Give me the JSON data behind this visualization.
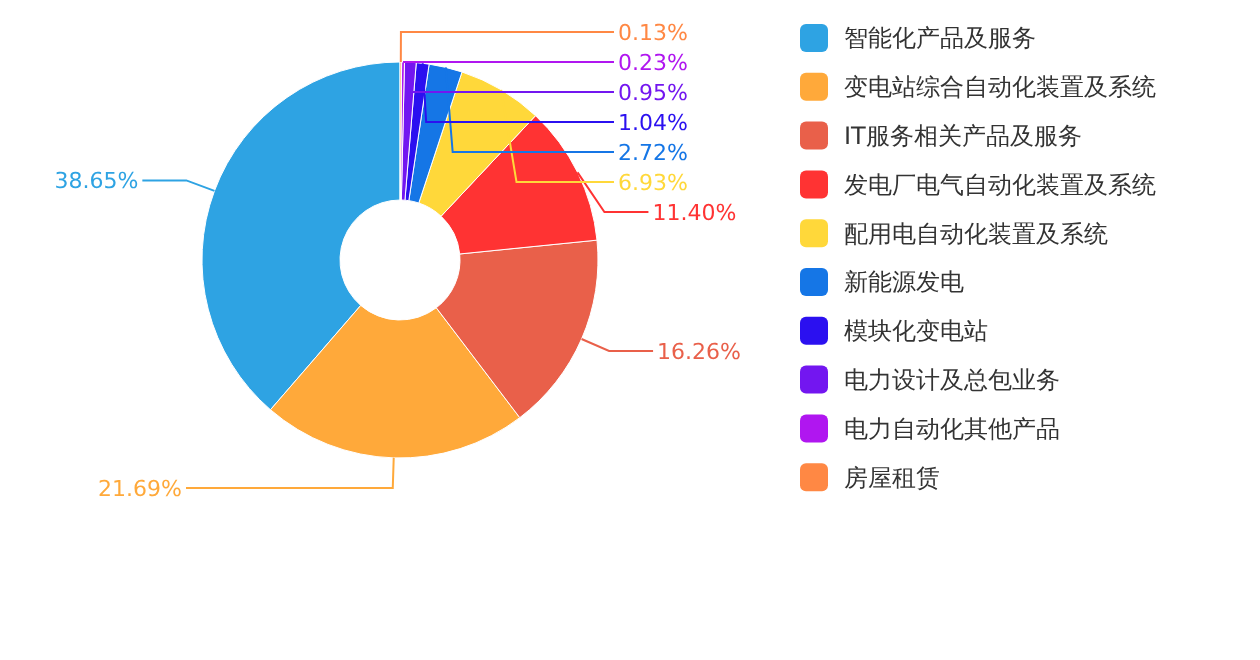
{
  "chart_data": {
    "type": "donut",
    "legend": "right",
    "categories": [
      "智能化产品及服务",
      "变电站综合自动化装置及系统",
      "IT服务相关产品及服务",
      "发电厂电气自动化装置及系统",
      "配用电自动化装置及系统",
      "新能源发电",
      "模块化变电站",
      "电力设计及总包业务",
      "电力自动化其他产品",
      "房屋租赁"
    ],
    "values": [
      38.65,
      21.69,
      16.26,
      11.4,
      6.93,
      2.72,
      1.04,
      0.95,
      0.23,
      0.13
    ],
    "value_labels": [
      "38.65%",
      "21.69%",
      "16.26%",
      "11.40%",
      "6.93%",
      "2.72%",
      "1.04%",
      "0.95%",
      "0.23%",
      "0.13%"
    ],
    "colors": [
      "#2ea3e3",
      "#ffa93a",
      "#e9604a",
      "#ff3333",
      "#ffd83a",
      "#1576e6",
      "#2b10f0",
      "#7316f0",
      "#b016f0",
      "#ff8844"
    ]
  }
}
